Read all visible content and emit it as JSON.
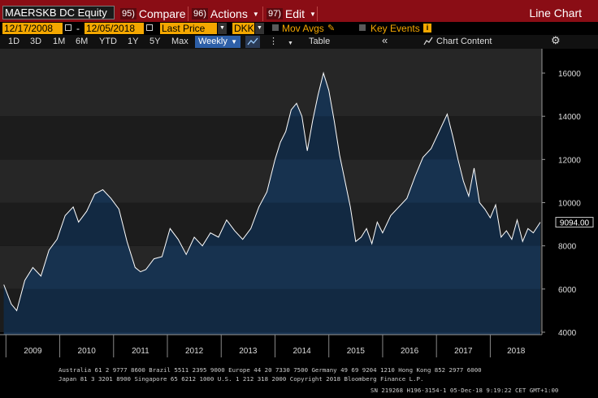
{
  "toolbar": {
    "ticker": "MAERSKB DC Equity",
    "compare_num": "95)",
    "compare_label": "Compare",
    "actions_num": "96)",
    "actions_label": "Actions",
    "edit_num": "97)",
    "edit_label": "Edit",
    "view_title": "Line Chart"
  },
  "settings": {
    "start_date": "12/17/2008",
    "end_date": "12/05/2018",
    "date_sep": "-",
    "field": "Last Price",
    "currency": "DKK",
    "mov_avgs": "Mov Avgs",
    "key_events": "Key Events"
  },
  "ranges": [
    "1D",
    "3D",
    "1M",
    "6M",
    "YTD",
    "1Y",
    "5Y",
    "Max"
  ],
  "periodicity": "Weekly",
  "bar3": {
    "table_label": "Table",
    "collapse": "«",
    "chart_content": "Chart Content"
  },
  "colors": {
    "toolbar_bg": "#8a0d15",
    "orange": "#f4a700",
    "line": "#ffffff",
    "area_top": "#1b3a5c",
    "weekly_bg": "#2d5fa8"
  },
  "chart_data": {
    "type": "area",
    "title": "",
    "xlabel": "",
    "ylabel": "",
    "ylim": [
      4000,
      16500
    ],
    "y_ticks": [
      4000,
      6000,
      8000,
      10000,
      12000,
      14000,
      16000
    ],
    "year_labels": [
      "2009",
      "2010",
      "2011",
      "2012",
      "2013",
      "2014",
      "2015",
      "2016",
      "2017",
      "2018"
    ],
    "last_value_label": "9094.00",
    "x": [
      2008.96,
      2009.1,
      2009.2,
      2009.35,
      2009.5,
      2009.65,
      2009.8,
      2009.95,
      2010.1,
      2010.25,
      2010.35,
      2010.5,
      2010.65,
      2010.8,
      2010.95,
      2011.1,
      2011.25,
      2011.4,
      2011.5,
      2011.6,
      2011.75,
      2011.9,
      2012.05,
      2012.2,
      2012.35,
      2012.5,
      2012.65,
      2012.8,
      2012.95,
      2013.1,
      2013.25,
      2013.4,
      2013.55,
      2013.7,
      2013.85,
      2014.0,
      2014.1,
      2014.2,
      2014.3,
      2014.4,
      2014.5,
      2014.6,
      2014.7,
      2014.8,
      2014.9,
      2015.0,
      2015.1,
      2015.2,
      2015.3,
      2015.4,
      2015.5,
      2015.6,
      2015.7,
      2015.8,
      2015.9,
      2016.0,
      2016.15,
      2016.3,
      2016.45,
      2016.6,
      2016.75,
      2016.9,
      2017.05,
      2017.2,
      2017.3,
      2017.4,
      2017.5,
      2017.6,
      2017.7,
      2017.8,
      2017.9,
      2018.0,
      2018.1,
      2018.2,
      2018.3,
      2018.4,
      2018.5,
      2018.6,
      2018.7,
      2018.8,
      2018.93
    ],
    "y": [
      6200,
      5300,
      5000,
      6400,
      7000,
      6600,
      7800,
      8300,
      9400,
      9800,
      9100,
      9600,
      10400,
      10600,
      10200,
      9700,
      8200,
      7000,
      6800,
      6900,
      7400,
      7500,
      8800,
      8300,
      7600,
      8400,
      8000,
      8600,
      8400,
      9200,
      8700,
      8300,
      8800,
      9800,
      10500,
      12000,
      12800,
      13300,
      14300,
      14600,
      14000,
      12400,
      13800,
      15000,
      16000,
      15200,
      13800,
      12200,
      11000,
      9800,
      8200,
      8400,
      8800,
      8100,
      9100,
      8600,
      9400,
      9800,
      10200,
      11200,
      12100,
      12500,
      13300,
      14100,
      13100,
      12000,
      11000,
      10300,
      11600,
      10000,
      9700,
      9300,
      9900,
      8400,
      8700,
      8300,
      9200,
      8200,
      8800,
      8600,
      9094
    ]
  },
  "footer": {
    "line1": "Australia 61 2 9777 8600 Brazil 5511 2395 9000 Europe 44 20 7330 7500 Germany 49 69 9204 1210 Hong Kong 852 2977 6000",
    "line2": "Japan 81 3 3201 8900       Singapore 65 6212 1000      U.S. 1 212 318 2000        Copyright 2018 Bloomberg Finance L.P.",
    "line3": "SN 219268 H196-3154-1 05-Dec-18  9:19:22 CET  GMT+1:00"
  }
}
